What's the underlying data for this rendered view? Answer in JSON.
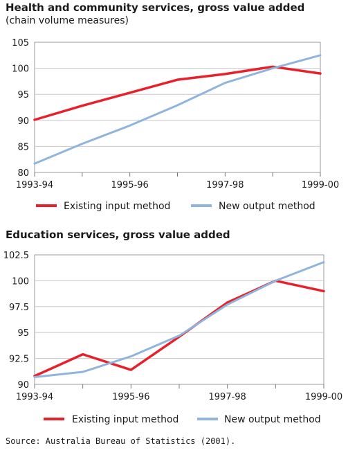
{
  "chart_data": [
    {
      "type": "line",
      "title": "Health and community services, gross value added",
      "subtitle": "(chain volume measures)",
      "categories": [
        "1993-94",
        "1994-95",
        "1995-96",
        "1996-97",
        "1997-98",
        "1998-99",
        "1999-00"
      ],
      "x_tick_labels": [
        "1993-94",
        "1995-96",
        "1997-98",
        "1999-00"
      ],
      "y_ticks": [
        "80",
        "85",
        "90",
        "95",
        "100",
        "105"
      ],
      "ylim": [
        80,
        105
      ],
      "grid": true,
      "legend_position": "bottom",
      "series": [
        {
          "name": "Existing input method",
          "color": "#e8202a",
          "values": [
            90.1,
            92.8,
            95.3,
            97.8,
            98.9,
            100.3,
            99.0
          ]
        },
        {
          "name": "New output method",
          "color": "#8fb5de",
          "values": [
            81.7,
            85.5,
            89.0,
            92.9,
            97.2,
            100.0,
            102.5
          ]
        }
      ]
    },
    {
      "type": "line",
      "title": "Education services, gross value added",
      "subtitle": "",
      "categories": [
        "1993-94",
        "1994-95",
        "1995-96",
        "1996-97",
        "1997-98",
        "1998-99",
        "1999-00"
      ],
      "x_tick_labels": [
        "1993-94",
        "1995-96",
        "1997-98",
        "1999-00"
      ],
      "y_ticks": [
        "90",
        "92.5",
        "95",
        "97.5",
        "100",
        "102.5"
      ],
      "ylim": [
        90,
        102.5
      ],
      "grid": true,
      "legend_position": "bottom",
      "series": [
        {
          "name": "Existing input method",
          "color": "#e8202a",
          "values": [
            90.8,
            92.9,
            91.4,
            94.6,
            97.9,
            100.0,
            99.0
          ]
        },
        {
          "name": "New output method",
          "color": "#8fb5de",
          "values": [
            90.7,
            91.2,
            92.7,
            94.7,
            97.7,
            100.0,
            101.8
          ]
        }
      ]
    }
  ],
  "source": "Source: Australia Bureau of Statistics (2001)."
}
